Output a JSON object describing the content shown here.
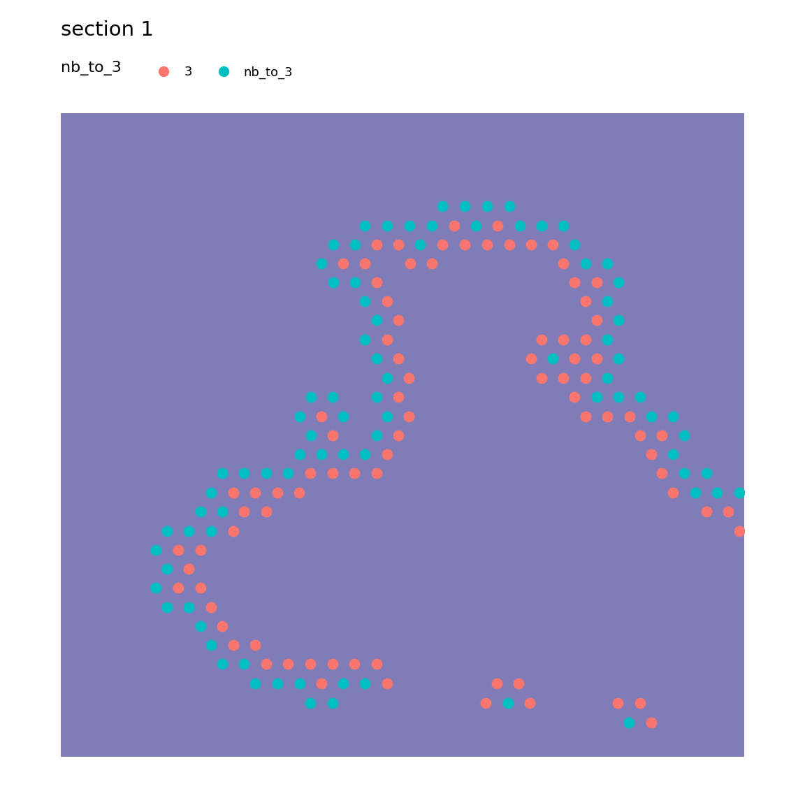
{
  "chart_data": {
    "type": "scatter",
    "title": "section 1",
    "legend_title": "nb_to_3",
    "legend": "upper left",
    "tick_labels": false,
    "grid": false,
    "xlim": [
      87,
      1065
    ],
    "ylim": [
      1083,
      162
    ],
    "series": [
      {
        "name": "3",
        "color": "#F8766D",
        "marker": "circle",
        "x": [
          650,
          712,
          539,
          570,
          633,
          665,
          697,
          729,
          760,
          791,
          491,
          522,
          587,
          618,
          806,
          539,
          822,
          854,
          554,
          838,
          570,
          854,
          554,
          775,
          806,
          838,
          570,
          760,
          822,
          854,
          585,
          775,
          806,
          838,
          570,
          822,
          460,
          585,
          838,
          869,
          901,
          476,
          570,
          916,
          947,
          554,
          932,
          444,
          476,
          507,
          539,
          947,
          334,
          365,
          397,
          428,
          963,
          349,
          381,
          1011,
          1042,
          334,
          1058,
          255,
          287,
          270,
          255,
          287,
          302,
          318,
          334,
          365,
          381,
          412,
          444,
          476,
          507,
          539,
          460,
          554,
          711,
          742,
          695,
          758,
          884,
          916,
          932
        ],
        "y": [
          323,
          323,
          350,
          350,
          350,
          350,
          350,
          350,
          350,
          350,
          377,
          377,
          377,
          377,
          377,
          404,
          404,
          404,
          431,
          431,
          458,
          458,
          486,
          486,
          486,
          486,
          513,
          513,
          513,
          513,
          541,
          541,
          541,
          541,
          568,
          568,
          596,
          596,
          596,
          596,
          596,
          623,
          623,
          623,
          623,
          650,
          650,
          677,
          677,
          677,
          677,
          677,
          705,
          705,
          705,
          705,
          705,
          732,
          732,
          732,
          732,
          760,
          760,
          787,
          787,
          814,
          841,
          841,
          869,
          896,
          923,
          923,
          950,
          950,
          950,
          950,
          950,
          950,
          978,
          978,
          978,
          978,
          1006,
          1006,
          1006,
          1006,
          1034
        ]
      },
      {
        "name": "nb_to_3",
        "color": "#00BFC4",
        "marker": "circle",
        "x": [
          633,
          665,
          697,
          729,
          522,
          554,
          586,
          618,
          681,
          744,
          775,
          806,
          477,
          508,
          601,
          822,
          460,
          838,
          869,
          477,
          508,
          885,
          522,
          869,
          539,
          885,
          522,
          869,
          539,
          791,
          885,
          554,
          869,
          445,
          476,
          539,
          854,
          885,
          916,
          429,
          491,
          554,
          932,
          963,
          445,
          539,
          979,
          429,
          460,
          491,
          522,
          963,
          318,
          349,
          381,
          412,
          979,
          1011,
          302,
          995,
          1026,
          1058,
          287,
          318,
          239,
          270,
          302,
          223,
          239,
          223,
          239,
          270,
          287,
          302,
          318,
          349,
          365,
          397,
          429,
          491,
          522,
          444,
          476,
          727,
          900
        ],
        "y": [
          295,
          295,
          295,
          295,
          323,
          323,
          323,
          323,
          323,
          323,
          323,
          323,
          350,
          350,
          350,
          350,
          377,
          377,
          377,
          404,
          404,
          404,
          431,
          431,
          458,
          458,
          486,
          486,
          513,
          513,
          513,
          541,
          541,
          568,
          568,
          568,
          568,
          568,
          568,
          596,
          596,
          596,
          596,
          596,
          623,
          623,
          623,
          650,
          650,
          650,
          650,
          650,
          677,
          677,
          677,
          677,
          677,
          677,
          705,
          705,
          705,
          705,
          732,
          732,
          760,
          760,
          760,
          787,
          814,
          841,
          869,
          869,
          896,
          923,
          950,
          950,
          978,
          978,
          978,
          978,
          978,
          1006,
          1006,
          1006,
          1034
        ]
      }
    ]
  }
}
